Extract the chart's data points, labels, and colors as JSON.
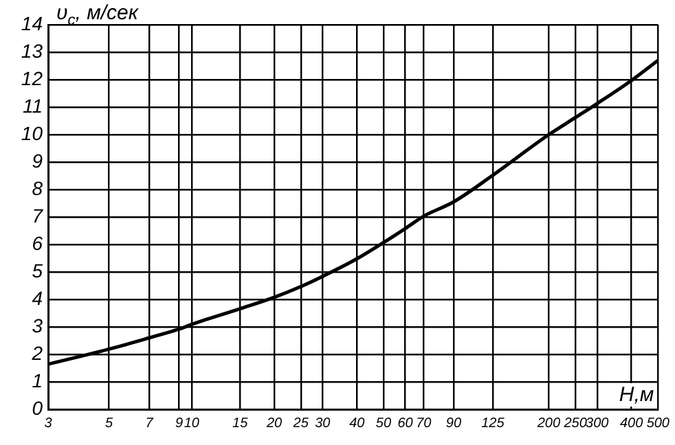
{
  "chart_data": {
    "type": "line",
    "ylabel": "υ$_{c}$, м/сек",
    "xlabel": "Н,м",
    "x": [
      3,
      5,
      7,
      9,
      10,
      15,
      20,
      25,
      30,
      40,
      50,
      60,
      70,
      90,
      125,
      200,
      250,
      300,
      400,
      500
    ],
    "series": [
      {
        "color": "#000000",
        "values": [
          1.64,
          2.19,
          2.6,
          2.92,
          3.09,
          3.66,
          4.08,
          4.47,
          4.84,
          5.48,
          6.07,
          6.58,
          7.03,
          7.55,
          8.52,
          10.0,
          10.62,
          11.13,
          11.97,
          12.7
        ]
      }
    ],
    "log": "x",
    "xlim": [
      3,
      500
    ],
    "xticks": [
      3,
      5,
      7,
      9,
      10,
      15,
      20,
      25,
      30,
      40,
      50,
      60,
      70,
      90,
      125,
      200,
      250,
      300,
      400,
      500
    ],
    "ylim": [
      0,
      14
    ],
    "yticks": [
      0,
      1,
      2,
      3,
      4,
      5,
      6,
      7,
      8,
      9,
      10,
      11,
      12,
      13,
      14
    ],
    "grid": true,
    "legend": false,
    "marker": "none",
    "line_style": "solid"
  }
}
